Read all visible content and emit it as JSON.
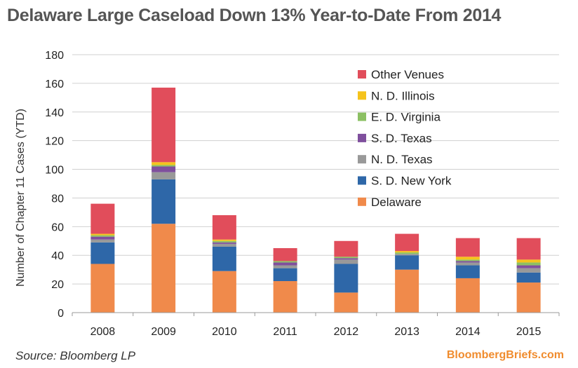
{
  "title": "Delaware Large Caseload Down 13% Year-to-Date From 2014",
  "source": "Source: Bloomberg LP",
  "brand": "BloombergBriefs.com",
  "chart_data": {
    "type": "bar",
    "stacked": true,
    "ylabel": "Number of Chapter 11 Cases (YTD)",
    "xlabel": "",
    "ylim": [
      0,
      180
    ],
    "yticks": [
      0,
      20,
      40,
      60,
      80,
      100,
      120,
      140,
      160,
      180
    ],
    "grid": true,
    "legend_position": "top-right",
    "categories": [
      "2008",
      "2009",
      "2010",
      "2011",
      "2012",
      "2013",
      "2014",
      "2015"
    ],
    "series": [
      {
        "name": "Delaware",
        "color": "#f08a4b",
        "values": [
          34,
          62,
          29,
          22,
          14,
          30,
          24,
          21
        ]
      },
      {
        "name": "S. D. New York",
        "color": "#2e67a8",
        "values": [
          15,
          31,
          17,
          9,
          20,
          10,
          9,
          7
        ]
      },
      {
        "name": "N. D. Texas",
        "color": "#999999",
        "values": [
          2,
          5,
          2,
          2,
          3,
          1,
          2,
          3
        ]
      },
      {
        "name": "S. D. Texas",
        "color": "#7f4f9d",
        "values": [
          2,
          4,
          1,
          2,
          1,
          0,
          1,
          2
        ]
      },
      {
        "name": "E. D. Virginia",
        "color": "#8cc063",
        "values": [
          1,
          1,
          1,
          1,
          1,
          1,
          1,
          2
        ]
      },
      {
        "name": "N. D. Illinois",
        "color": "#f5c31c",
        "values": [
          1,
          2,
          1,
          0,
          0,
          1,
          2,
          2
        ]
      },
      {
        "name": "Other Venues",
        "color": "#e14d5b",
        "values": [
          21,
          52,
          17,
          9,
          11,
          12,
          13,
          15
        ]
      }
    ]
  }
}
